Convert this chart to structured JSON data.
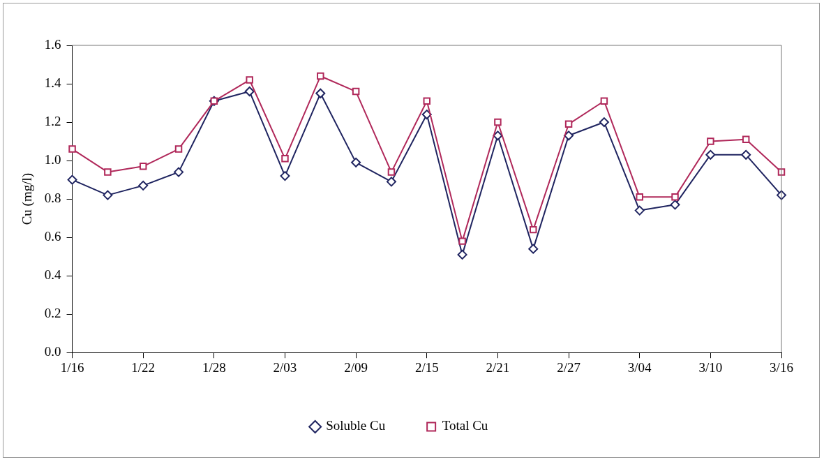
{
  "chart_data": {
    "type": "line",
    "ylabel": "Cu (mg/l)",
    "categories": [
      "1/16",
      null,
      "1/22",
      null,
      "1/28",
      null,
      "2/03",
      null,
      "2/09",
      null,
      "2/15",
      null,
      "2/21",
      null,
      "2/27",
      null,
      "3/04",
      null,
      "3/10",
      null,
      "3/16"
    ],
    "series": [
      {
        "name": "Soluble Cu",
        "color": "#1f2460",
        "marker": "diamond",
        "values": [
          0.9,
          0.82,
          0.87,
          0.94,
          1.31,
          1.36,
          0.92,
          1.35,
          0.99,
          0.89,
          1.24,
          0.51,
          1.13,
          0.54,
          1.13,
          1.2,
          0.74,
          0.77,
          1.03,
          1.03,
          0.82
        ]
      },
      {
        "name": "Total Cu",
        "color": "#b0285a",
        "marker": "square",
        "values": [
          1.06,
          0.94,
          0.97,
          1.06,
          1.31,
          1.42,
          1.01,
          1.44,
          1.36,
          0.94,
          1.31,
          0.58,
          1.2,
          0.64,
          1.19,
          1.31,
          0.81,
          0.81,
          1.1,
          1.11,
          0.94
        ]
      }
    ],
    "ylim": [
      0,
      1.6
    ],
    "yticks": [
      {
        "value": 0,
        "label": "0.0"
      },
      {
        "value": 0.2,
        "label": "0.2"
      },
      {
        "value": 0.4,
        "label": "0.4"
      },
      {
        "value": 0.6,
        "label": "0.6"
      },
      {
        "value": 0.8,
        "label": "0.8"
      },
      {
        "value": 1,
        "label": "1.0"
      },
      {
        "value": 1.2,
        "label": "1.2"
      },
      {
        "value": 1.4,
        "label": "1.4"
      },
      {
        "value": 1.6,
        "label": "1.6"
      }
    ],
    "grid": false,
    "legend": "bottom",
    "line_style": "solid"
  }
}
